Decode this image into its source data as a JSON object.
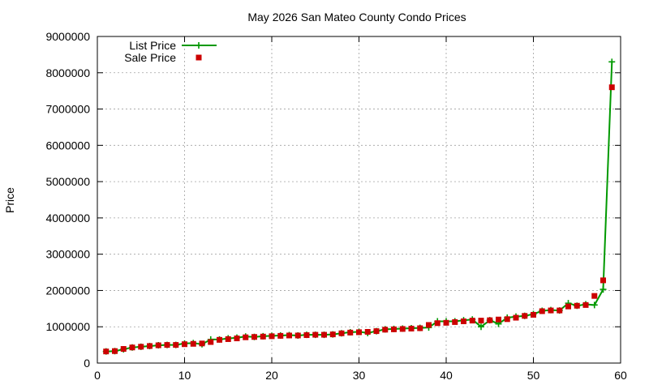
{
  "chart_data": {
    "type": "line",
    "title": "May 2026 San Mateo County Condo Prices",
    "xlabel": "",
    "ylabel": "Price",
    "xlim": [
      0,
      60
    ],
    "ylim": [
      0,
      9000000
    ],
    "xticks": [
      0,
      10,
      20,
      30,
      40,
      50,
      60
    ],
    "yticks": [
      0,
      1000000,
      2000000,
      3000000,
      4000000,
      5000000,
      6000000,
      7000000,
      8000000,
      9000000
    ],
    "grid": true,
    "legend_position": "top-left",
    "series": [
      {
        "name": "List Price",
        "style": "line-plus",
        "color": "#009900",
        "x": [
          1,
          2,
          3,
          4,
          5,
          6,
          7,
          8,
          9,
          10,
          11,
          12,
          13,
          14,
          15,
          16,
          17,
          18,
          19,
          20,
          21,
          22,
          23,
          24,
          25,
          26,
          27,
          28,
          29,
          30,
          31,
          32,
          33,
          34,
          35,
          36,
          37,
          38,
          39,
          40,
          41,
          42,
          43,
          44,
          45,
          46,
          47,
          48,
          49,
          50,
          51,
          52,
          53,
          54,
          55,
          56,
          57,
          58,
          59
        ],
        "values": [
          320000,
          330000,
          380000,
          430000,
          450000,
          470000,
          490000,
          500000,
          500000,
          540000,
          550000,
          520000,
          650000,
          650000,
          680000,
          700000,
          730000,
          720000,
          740000,
          750000,
          760000,
          770000,
          760000,
          780000,
          780000,
          780000,
          790000,
          820000,
          850000,
          860000,
          830000,
          880000,
          930000,
          940000,
          950000,
          960000,
          970000,
          980000,
          1150000,
          1150000,
          1150000,
          1180000,
          1200000,
          1000000,
          1180000,
          1080000,
          1250000,
          1280000,
          1300000,
          1350000,
          1440000,
          1460000,
          1450000,
          1650000,
          1580000,
          1620000,
          1600000,
          2030000,
          8300000
        ]
      },
      {
        "name": "Sale Price",
        "style": "square",
        "color": "#cc0000",
        "x": [
          1,
          2,
          3,
          4,
          5,
          6,
          7,
          8,
          9,
          10,
          11,
          12,
          13,
          14,
          15,
          16,
          17,
          18,
          19,
          20,
          21,
          22,
          23,
          24,
          25,
          26,
          27,
          28,
          29,
          30,
          31,
          32,
          33,
          34,
          35,
          36,
          37,
          38,
          39,
          40,
          41,
          42,
          43,
          44,
          45,
          46,
          47,
          48,
          49,
          50,
          51,
          52,
          53,
          54,
          55,
          56,
          57,
          58,
          59
        ],
        "values": [
          320000,
          330000,
          390000,
          430000,
          450000,
          470000,
          490000,
          500000,
          500000,
          520000,
          530000,
          540000,
          580000,
          640000,
          660000,
          680000,
          710000,
          720000,
          730000,
          740000,
          750000,
          760000,
          760000,
          770000,
          780000,
          780000,
          790000,
          820000,
          840000,
          850000,
          860000,
          880000,
          920000,
          930000,
          940000,
          950000,
          960000,
          1050000,
          1100000,
          1110000,
          1130000,
          1150000,
          1170000,
          1170000,
          1180000,
          1200000,
          1210000,
          1250000,
          1300000,
          1330000,
          1430000,
          1450000,
          1450000,
          1560000,
          1580000,
          1600000,
          1850000,
          2280000,
          7600000
        ]
      }
    ]
  }
}
